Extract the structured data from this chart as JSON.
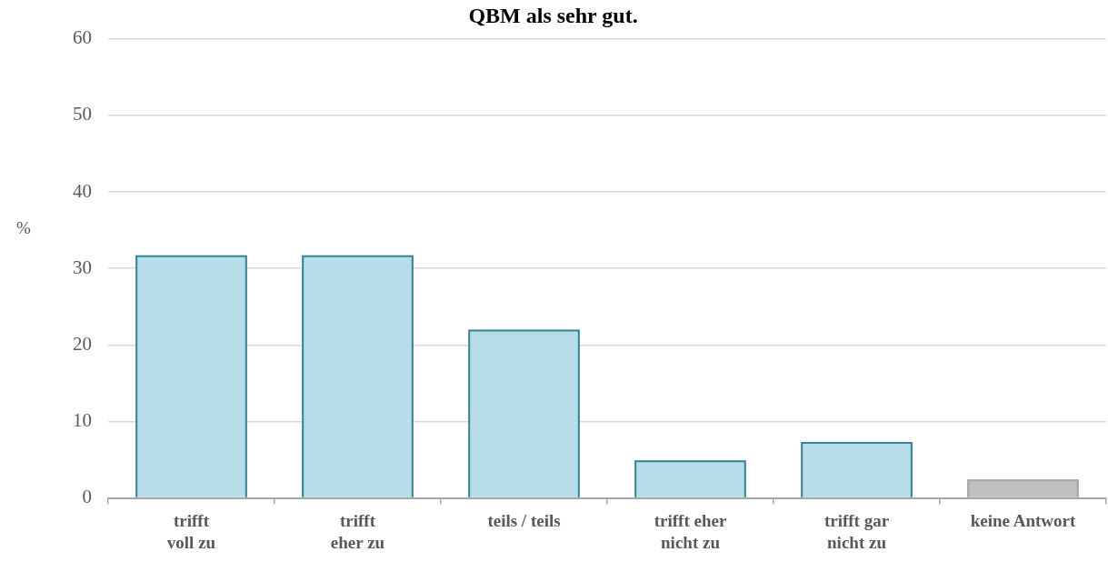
{
  "chart_data": {
    "type": "bar",
    "title": "QBM als sehr gut.",
    "ylabel": "%",
    "categories": [
      "trifft\nvoll zu",
      "trifft\neher zu",
      "teils / teils",
      "trifft eher\nnicht zu",
      "trifft gar\nnicht zu",
      "keine Antwort"
    ],
    "values": [
      31.7,
      31.7,
      22.0,
      4.9,
      7.3,
      2.4
    ],
    "colors": [
      "#b7dde8",
      "#b7dde8",
      "#b7dde8",
      "#b7dde8",
      "#b7dde8",
      "#bfbfbf"
    ],
    "ylim": [
      0,
      60
    ],
    "yticks": [
      0,
      10,
      20,
      30,
      40,
      50,
      60
    ],
    "grid": "y"
  }
}
